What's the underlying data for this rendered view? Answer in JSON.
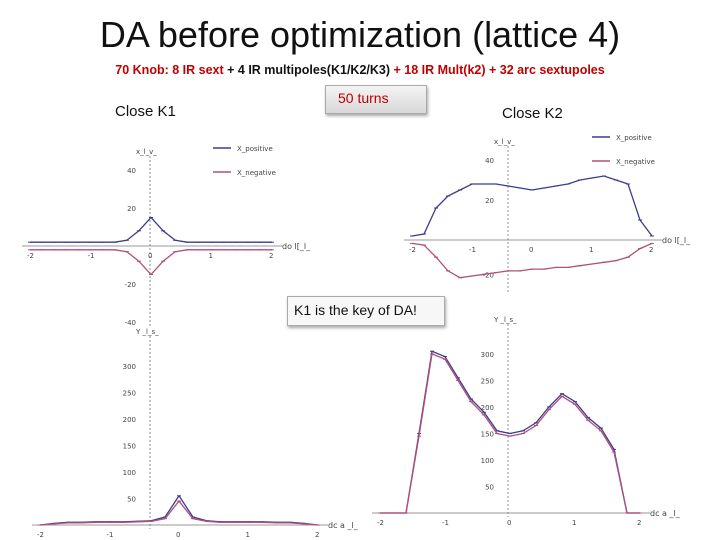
{
  "title": "DA before optimization (lattice 4)",
  "subtitle": {
    "p1": "70 Knob: 8 IR sext",
    "p2": " + 4 IR multipoles(K1/K2/K3) ",
    "p3": "+ 18 IR Mult(k2) + 32 arc sextupoles"
  },
  "labels": {
    "close_k1": "Close K1",
    "close_k2": "Close K2"
  },
  "callouts": {
    "turns": "50 turns",
    "key": "K1 is the key of DA!"
  },
  "colors": {
    "positive": "#3b3b8f",
    "negative": "#b0507a",
    "accent": "#c00000"
  },
  "plots": {
    "k1x": {
      "ylabel": "x_l_v_",
      "xlabel": "do l[_l_",
      "legend": [
        "X_positive",
        "X_negative"
      ],
      "xticks": [
        "-2",
        "-1",
        "0",
        "1",
        "2"
      ],
      "yticks": [
        "40",
        "20",
        "-20",
        "-40"
      ],
      "xrange": [
        -2,
        2
      ],
      "yrange": [
        -40,
        40
      ],
      "x": [
        -2.0,
        -1.8,
        -1.6,
        -1.4,
        -1.2,
        -1.0,
        -0.8,
        -0.6,
        -0.4,
        -0.2,
        0.0,
        0.2,
        0.4,
        0.6,
        0.8,
        1.0,
        1.2,
        1.4,
        1.6,
        1.8,
        2.0
      ],
      "pos": [
        2,
        2,
        2,
        2,
        2,
        2,
        2,
        2,
        3,
        8,
        15,
        8,
        3,
        2,
        2,
        2,
        2,
        2,
        2,
        2,
        2
      ],
      "neg": [
        -2,
        -2,
        -2,
        -2,
        -2,
        -2,
        -2,
        -2,
        -3,
        -8,
        -15,
        -8,
        -3,
        -2,
        -2,
        -2,
        -2,
        -2,
        -2,
        -2,
        -2
      ]
    },
    "k2x": {
      "ylabel": "x_l_v_",
      "xlabel": "do l[_l_",
      "legend": [
        "X_positive",
        "X_negative"
      ],
      "xticks": [
        "-2",
        "-1",
        "0",
        "1",
        "2"
      ],
      "yticks": [
        "40",
        "20",
        "-20"
      ],
      "xrange": [
        -2,
        2
      ],
      "yrange": [
        -28,
        40
      ],
      "x": [
        -2.0,
        -1.8,
        -1.6,
        -1.4,
        -1.2,
        -1.0,
        -0.8,
        -0.6,
        -0.4,
        -0.2,
        0.0,
        0.2,
        0.4,
        0.6,
        0.8,
        1.0,
        1.2,
        1.4,
        1.6,
        1.8,
        2.0
      ],
      "pos": [
        2,
        3,
        16,
        22,
        25,
        28,
        28,
        28,
        27,
        26,
        25,
        26,
        27,
        28,
        30,
        31,
        32,
        30,
        28,
        10,
        2
      ],
      "neg": [
        -2,
        -3,
        -10,
        -18,
        -22,
        -21,
        -20,
        -19,
        -18,
        -18,
        -17,
        -17,
        -16,
        -16,
        -15,
        -14,
        -13,
        -12,
        -10,
        -5,
        -2
      ]
    },
    "k1y": {
      "ylabel": "Y _l_s_",
      "xlabel": "dc a _l_",
      "xticks": [
        "-2",
        "-1",
        "0",
        "1",
        "2"
      ],
      "yticks": [
        "300",
        "250",
        "200",
        "150",
        "100",
        "50"
      ],
      "xrange": [
        -2,
        2
      ],
      "yrange": [
        0,
        330
      ],
      "x": [
        -2.0,
        -1.8,
        -1.6,
        -1.4,
        -1.2,
        -1.0,
        -0.8,
        -0.6,
        -0.4,
        -0.2,
        0.0,
        0.2,
        0.4,
        0.6,
        0.8,
        1.0,
        1.2,
        1.4,
        1.6,
        1.8,
        2.0
      ],
      "pos": [
        0,
        3,
        5,
        5,
        6,
        6,
        6,
        7,
        8,
        15,
        55,
        15,
        8,
        6,
        6,
        6,
        6,
        5,
        5,
        3,
        0
      ],
      "neg": [
        0,
        2,
        4,
        4,
        5,
        5,
        5,
        6,
        7,
        12,
        45,
        12,
        7,
        5,
        5,
        5,
        5,
        4,
        4,
        2,
        0
      ]
    },
    "k2y": {
      "ylabel": "Y _l_s_",
      "xlabel": "dc a _l_",
      "xticks": [
        "-2",
        "-1",
        "0",
        "1",
        "2"
      ],
      "yticks": [
        "300",
        "250",
        "200",
        "150",
        "100",
        "50"
      ],
      "xrange": [
        -2,
        2
      ],
      "yrange": [
        0,
        330
      ],
      "x": [
        -2.0,
        -1.8,
        -1.6,
        -1.4,
        -1.2,
        -1.0,
        -0.8,
        -0.6,
        -0.4,
        -0.2,
        0.0,
        0.2,
        0.4,
        0.6,
        0.8,
        1.0,
        1.2,
        1.4,
        1.6,
        1.8,
        2.0
      ],
      "pos": [
        0,
        0,
        0,
        150,
        305,
        295,
        255,
        215,
        190,
        155,
        150,
        155,
        170,
        200,
        225,
        210,
        180,
        160,
        120,
        0,
        0
      ],
      "neg": [
        0,
        0,
        0,
        145,
        300,
        290,
        250,
        210,
        185,
        150,
        145,
        150,
        165,
        195,
        220,
        205,
        175,
        155,
        115,
        0,
        0
      ]
    }
  }
}
